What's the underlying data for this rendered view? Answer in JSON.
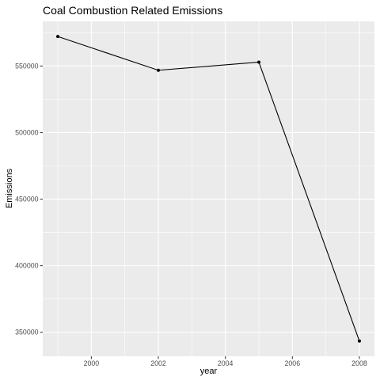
{
  "chart_data": {
    "type": "line",
    "title": "Coal Combustion Related Emissions",
    "xlabel": "year",
    "ylabel": "Emissions",
    "x": [
      1999,
      2002,
      2005,
      2008
    ],
    "series": [
      {
        "values": [
          572126,
          546789,
          552881,
          343432
        ]
      }
    ],
    "xlim": [
      1998.55,
      2008.45
    ],
    "ylim": [
      332000,
      583500
    ],
    "x_ticks": [
      2000,
      2002,
      2004,
      2006,
      2008
    ],
    "x_tick_labels": [
      "2000",
      "2002",
      "2004",
      "2006",
      "2008"
    ],
    "y_ticks": [
      350000,
      400000,
      450000,
      500000,
      550000
    ],
    "y_tick_labels": [
      "350000",
      "400000",
      "450000",
      "500000",
      "550000"
    ],
    "grid": true,
    "colors": {
      "panel_background": "#ebebeb",
      "grid_major": "#ffffff",
      "line": "#000000",
      "point": "#000000"
    }
  }
}
